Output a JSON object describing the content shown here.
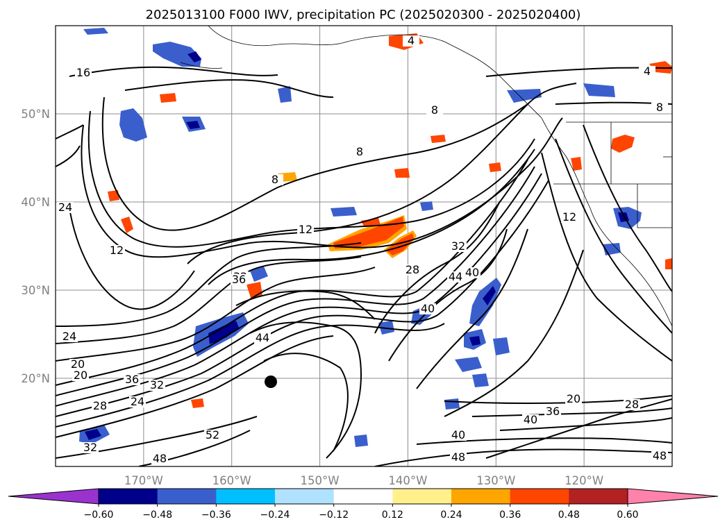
{
  "chart_data": {
    "type": "contour_map",
    "title": "2025013100 F000 IWV, precipitation PC (2025020300 - 2025020400)",
    "x_ticks": [
      "170°W",
      "160°W",
      "150°W",
      "140°W",
      "130°W",
      "120°W"
    ],
    "y_ticks": [
      "50°N",
      "40°N",
      "30°N",
      "20°N"
    ],
    "lon_range": [
      -180,
      -110
    ],
    "lat_range": [
      10,
      60
    ],
    "grid": true,
    "contour_labels": [
      "4",
      "4",
      "8",
      "8",
      "8",
      "8",
      "12",
      "12",
      "12",
      "16",
      "20",
      "20",
      "20",
      "24",
      "24",
      "24",
      "28",
      "28",
      "28",
      "32",
      "32",
      "32",
      "32",
      "36",
      "36",
      "36",
      "40",
      "40",
      "40",
      "40",
      "44",
      "44",
      "48",
      "48",
      "48",
      "52"
    ],
    "colorbar": {
      "ticks": [
        "−0.60",
        "−0.48",
        "−0.36",
        "−0.24",
        "−0.12",
        "0.12",
        "0.24",
        "0.36",
        "0.48",
        "0.60"
      ],
      "colors": [
        "#9a32cd",
        "#00008b",
        "#3a5fcd",
        "#00bfff",
        "#b0e2ff",
        "#ffffff",
        "#fff08c",
        "#ffa500",
        "#ff4500",
        "#b22222",
        "#ff82ab"
      ]
    }
  }
}
